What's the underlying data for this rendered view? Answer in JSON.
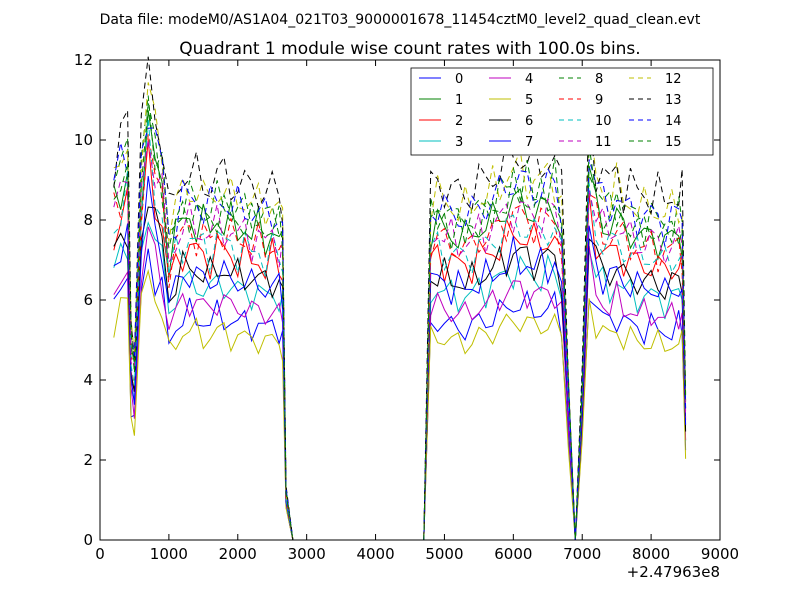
{
  "chart_data": {
    "type": "line",
    "suptitle": "Data file: modeM0/AS1A04_021T03_9000001678_11454cztM0_level2_quad_clean.evt",
    "title": "Quadrant 1 module wise count rates with 100.0s bins.",
    "xlabel": "",
    "ylabel": "",
    "x_offset_label": "+2.47963e8",
    "xlim": [
      0,
      9000
    ],
    "ylim": [
      0,
      12
    ],
    "xticks": [
      0,
      1000,
      2000,
      3000,
      4000,
      5000,
      6000,
      7000,
      8000,
      9000
    ],
    "xtick_labels": [
      "0",
      "1000",
      "2000",
      "3000",
      "4000",
      "5000",
      "6000",
      "7000",
      "8000",
      "9000"
    ],
    "yticks": [
      0,
      2,
      4,
      6,
      8,
      10,
      12
    ],
    "ytick_labels": [
      "0",
      "2",
      "4",
      "6",
      "8",
      "10",
      "12"
    ],
    "grid": false,
    "legend_position": "top-right",
    "legend_columns": 4,
    "x": [
      200,
      300,
      400,
      450,
      500,
      600,
      700,
      800,
      900,
      1000,
      1100,
      1200,
      1300,
      1400,
      1500,
      1600,
      1700,
      1800,
      1900,
      2000,
      2100,
      2200,
      2300,
      2400,
      2500,
      2600,
      2650,
      2700,
      2800,
      2900,
      3000,
      3500,
      4000,
      4500,
      4700,
      4800,
      4900,
      5000,
      5100,
      5200,
      5300,
      5400,
      5500,
      5600,
      5700,
      5800,
      5900,
      6000,
      6100,
      6200,
      6300,
      6400,
      6500,
      6600,
      6700,
      6800,
      6900,
      7000,
      7100,
      7200,
      7300,
      7400,
      7500,
      7600,
      7700,
      7800,
      7900,
      8000,
      8100,
      8200,
      8300,
      8400,
      8450,
      8500
    ],
    "envelope": [
      0.79,
      0.83,
      0.87,
      0.45,
      0.4,
      0.83,
      0.99,
      0.88,
      0.83,
      0.67,
      0.72,
      0.75,
      0.76,
      0.75,
      0.74,
      0.73,
      0.76,
      0.75,
      0.74,
      0.73,
      0.74,
      0.72,
      0.73,
      0.71,
      0.73,
      0.71,
      0.69,
      0.11,
      0.0,
      0.0,
      0.0,
      0.0,
      0.0,
      0.0,
      0.0,
      0.73,
      0.74,
      0.73,
      0.72,
      0.72,
      0.71,
      0.72,
      0.74,
      0.74,
      0.75,
      0.77,
      0.78,
      0.8,
      0.79,
      0.79,
      0.77,
      0.78,
      0.78,
      0.79,
      0.72,
      0.35,
      0.0,
      0.35,
      0.87,
      0.78,
      0.75,
      0.74,
      0.76,
      0.73,
      0.73,
      0.72,
      0.71,
      0.72,
      0.71,
      0.7,
      0.71,
      0.72,
      0.71,
      0.31
    ],
    "series": [
      {
        "name": "0",
        "color": "#0000ff",
        "dash": "solid",
        "scale": 7.4
      },
      {
        "name": "1",
        "color": "#008000",
        "dash": "solid",
        "scale": 10.6
      },
      {
        "name": "2",
        "color": "#ff0000",
        "dash": "solid",
        "scale": 9.6
      },
      {
        "name": "3",
        "color": "#00bfbf",
        "dash": "solid",
        "scale": 8.5
      },
      {
        "name": "4",
        "color": "#bf00bf",
        "dash": "solid",
        "scale": 7.9
      },
      {
        "name": "5",
        "color": "#bfbf00",
        "dash": "solid",
        "scale": 6.9
      },
      {
        "name": "6",
        "color": "#000000",
        "dash": "solid",
        "scale": 9.0
      },
      {
        "name": "7",
        "color": "#0000ff",
        "dash": "solid",
        "scale": 8.8
      },
      {
        "name": "8",
        "color": "#008000",
        "dash": "dashed",
        "scale": 11.2
      },
      {
        "name": "9",
        "color": "#ff0000",
        "dash": "dashed",
        "scale": 10.2
      },
      {
        "name": "10",
        "color": "#00bfbf",
        "dash": "dashed",
        "scale": 9.9
      },
      {
        "name": "11",
        "color": "#bf00bf",
        "dash": "dashed",
        "scale": 10.4
      },
      {
        "name": "12",
        "color": "#bfbf00",
        "dash": "dashed",
        "scale": 11.6
      },
      {
        "name": "13",
        "color": "#000000",
        "dash": "dashed",
        "scale": 12.1
      },
      {
        "name": "14",
        "color": "#0000ff",
        "dash": "dashed",
        "scale": 11.3
      },
      {
        "name": "15",
        "color": "#008000",
        "dash": "dashed",
        "scale": 10.9
      }
    ]
  }
}
